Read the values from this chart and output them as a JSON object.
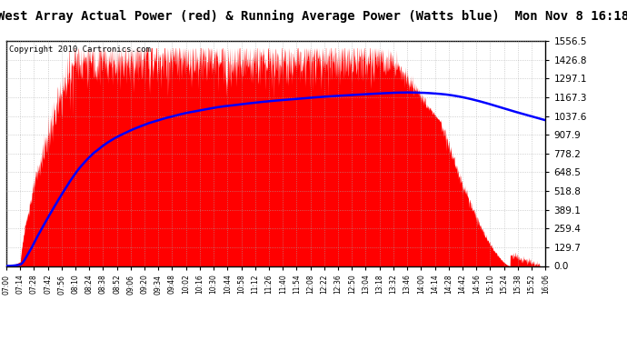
{
  "title": "West Array Actual Power (red) & Running Average Power (Watts blue)  Mon Nov 8 16:18",
  "copyright": "Copyright 2010 Cartronics.com",
  "ylim": [
    0.0,
    1556.5
  ],
  "yticks": [
    0.0,
    129.7,
    259.4,
    389.1,
    518.8,
    648.5,
    778.2,
    907.9,
    1037.6,
    1167.3,
    1297.1,
    1426.8,
    1556.5
  ],
  "xtick_labels": [
    "07:00",
    "07:14",
    "07:28",
    "07:42",
    "07:56",
    "08:10",
    "08:24",
    "08:38",
    "08:52",
    "09:06",
    "09:20",
    "09:34",
    "09:48",
    "10:02",
    "10:16",
    "10:30",
    "10:44",
    "10:58",
    "11:12",
    "11:26",
    "11:40",
    "11:54",
    "12:08",
    "12:22",
    "12:36",
    "12:50",
    "13:04",
    "13:18",
    "13:32",
    "13:46",
    "14:00",
    "14:14",
    "14:28",
    "14:42",
    "14:56",
    "15:10",
    "15:24",
    "15:38",
    "15:52",
    "16:06"
  ],
  "background_color": "#ffffff",
  "grid_color": "#aaaaaa",
  "fill_color": "#ff0000",
  "line_color": "#0000ff",
  "title_fontsize": 10,
  "copyright_fontsize": 6.5
}
